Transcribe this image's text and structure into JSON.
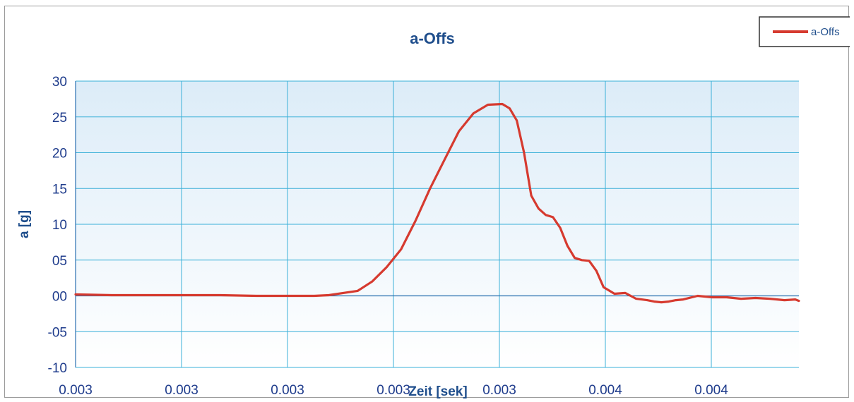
{
  "chart_data": {
    "type": "line",
    "title": "a-Offs",
    "xlabel": "Zeit [sek]",
    "ylabel": "a [g]",
    "ylim": [
      -10,
      30
    ],
    "y_ticks": [
      -10,
      -5,
      0,
      5,
      10,
      15,
      20,
      25,
      30
    ],
    "y_tick_labels": [
      "-10",
      "-05",
      "00",
      "05",
      "10",
      "15",
      "20",
      "25",
      "30"
    ],
    "x_tick_labels": [
      "0.003",
      "0.003",
      "0.003",
      "0.003",
      "0.003",
      "0.004",
      "0.004"
    ],
    "grid": true,
    "legend_position": "top-right",
    "colors": {
      "series": "#d63a2f",
      "grid": "#3ab0d8",
      "plot_bg_top": "#dcecf8",
      "plot_bg_bottom": "#ffffff"
    },
    "series": [
      {
        "name": "a-Offs",
        "x": [
          0,
          0.05,
          0.1,
          0.15,
          0.2,
          0.25,
          0.3,
          0.33,
          0.35,
          0.37,
          0.39,
          0.41,
          0.43,
          0.45,
          0.47,
          0.49,
          0.51,
          0.53,
          0.55,
          0.57,
          0.59,
          0.6,
          0.61,
          0.62,
          0.63,
          0.64,
          0.65,
          0.66,
          0.67,
          0.68,
          0.69,
          0.7,
          0.71,
          0.72,
          0.73,
          0.745,
          0.76,
          0.775,
          0.79,
          0.8,
          0.81,
          0.82,
          0.83,
          0.84,
          0.86,
          0.88,
          0.9,
          0.92,
          0.94,
          0.96,
          0.98,
          0.995,
          1.0
        ],
        "y": [
          0.2,
          0.1,
          0.1,
          0.1,
          0.1,
          0,
          0,
          0,
          0.1,
          0.4,
          0.7,
          2,
          4,
          6.5,
          10.5,
          15,
          19,
          23,
          25.5,
          26.7,
          26.8,
          26.2,
          24.5,
          20,
          14,
          12.2,
          11.3,
          11,
          9.5,
          7,
          5.3,
          5,
          4.9,
          3.5,
          1.2,
          0.3,
          0.4,
          -0.4,
          -0.6,
          -0.8,
          -0.9,
          -0.8,
          -0.6,
          -0.5,
          0,
          -0.2,
          -0.2,
          -0.4,
          -0.3,
          -0.4,
          -0.6,
          -0.5,
          -0.7
        ]
      }
    ]
  }
}
